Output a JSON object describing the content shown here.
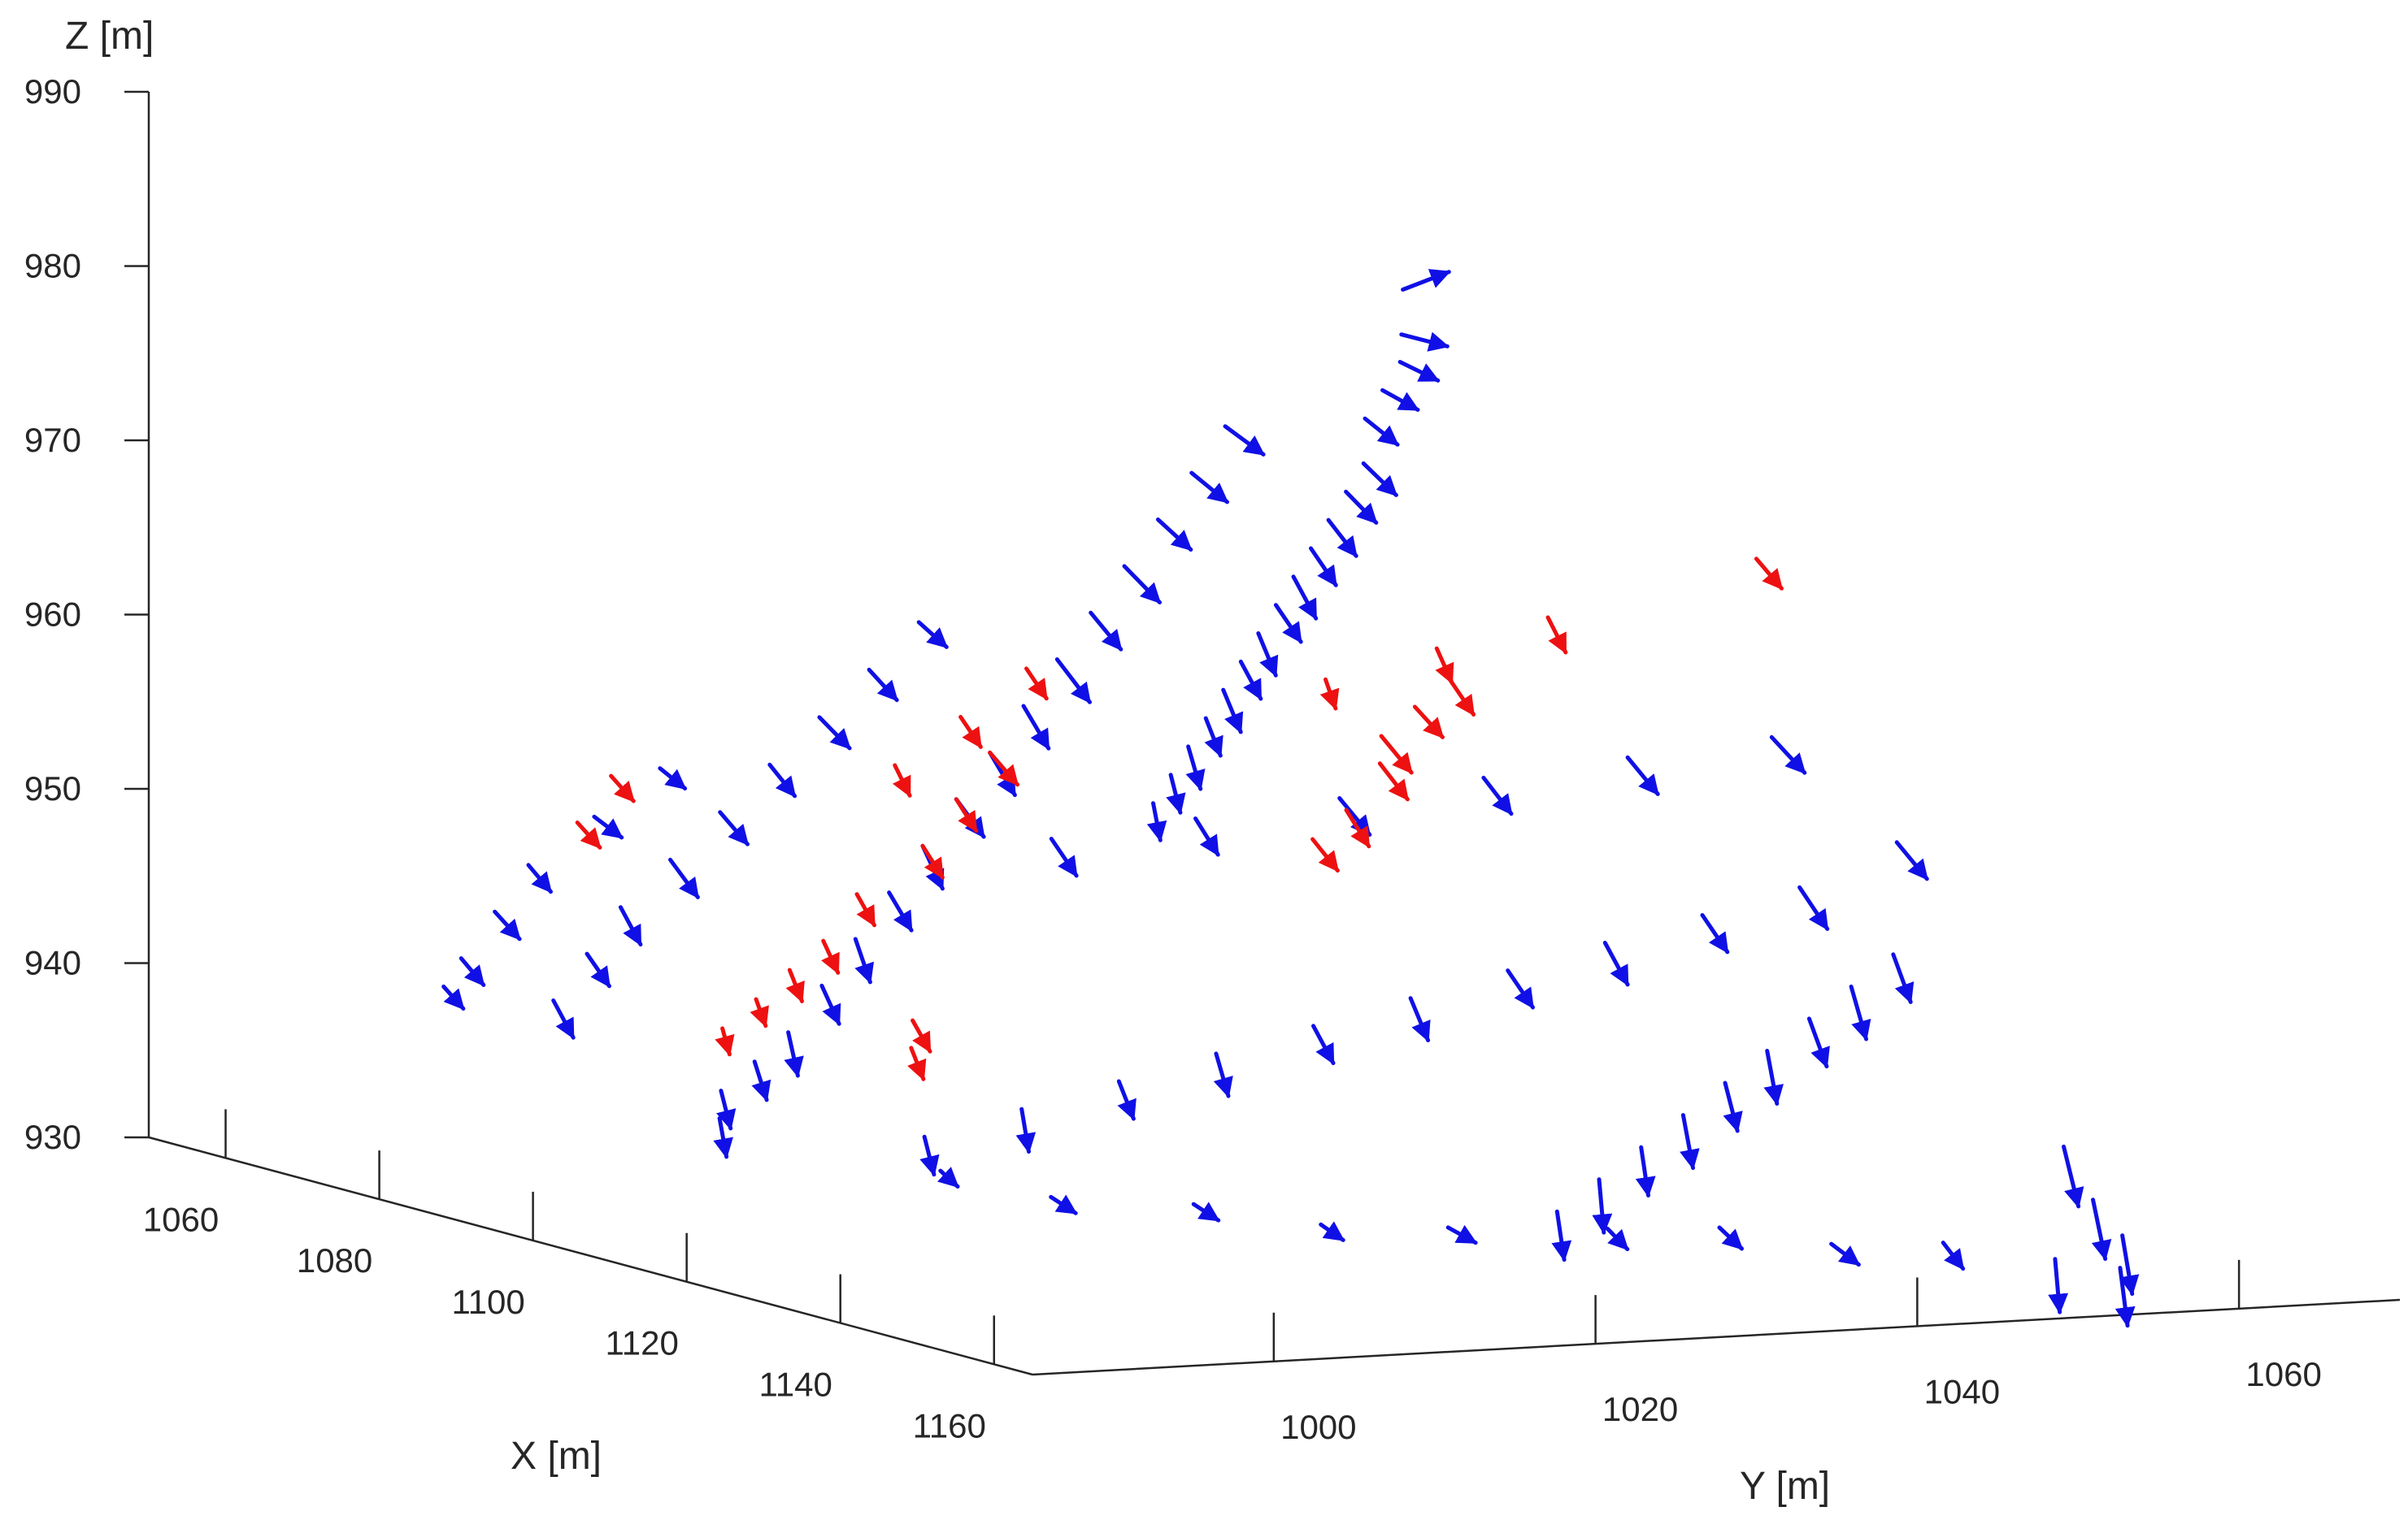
{
  "chart_data": {
    "type": "quiver3d",
    "title": "",
    "xlabel": "X [m]",
    "ylabel": "Y [m]",
    "zlabel": "Z [m]",
    "xlim": [
      1050,
      1165
    ],
    "ylim": [
      985,
      1070
    ],
    "zlim": [
      930,
      990
    ],
    "xticks": [
      1060,
      1080,
      1100,
      1120,
      1140,
      1160
    ],
    "yticks": [
      1000,
      1020,
      1040,
      1060
    ],
    "zticks": [
      930,
      940,
      950,
      960,
      970,
      980,
      990
    ],
    "grid": false,
    "legend": "none",
    "colors": {
      "normal": "#1010e6",
      "highlight": "#ee1111",
      "axis": "#262626"
    },
    "series": [
      {
        "color": "#1010e6",
        "vectors": [
          [
            1052,
            1062,
            975,
            0.2,
            0.8,
            0.3
          ],
          [
            1056,
            1060,
            973,
            0.4,
            0.7,
            -0.2
          ],
          [
            1060,
            1058,
            972,
            0.5,
            0.5,
            -0.3
          ],
          [
            1064,
            1055,
            971,
            0.6,
            0.4,
            -0.3
          ],
          [
            1068,
            1052,
            970,
            0.7,
            0.3,
            -0.4
          ],
          [
            1072,
            1050,
            968,
            0.7,
            0.3,
            -0.5
          ],
          [
            1076,
            1047,
            967,
            0.6,
            0.3,
            -0.5
          ],
          [
            1080,
            1044,
            966,
            0.5,
            0.3,
            -0.6
          ],
          [
            1084,
            1041,
            965,
            0.6,
            0.2,
            -0.6
          ],
          [
            1088,
            1038,
            964,
            0.5,
            0.2,
            -0.7
          ],
          [
            1092,
            1035,
            963,
            0.6,
            0.2,
            -0.6
          ],
          [
            1096,
            1032,
            962,
            0.5,
            0.1,
            -0.7
          ],
          [
            1100,
            1029,
            961,
            0.6,
            0.1,
            -0.6
          ],
          [
            1104,
            1026,
            960,
            0.5,
            0.1,
            -0.7
          ],
          [
            1108,
            1023,
            959,
            0.6,
            0.0,
            -0.6
          ],
          [
            1112,
            1020,
            958,
            0.5,
            0.0,
            -0.7
          ],
          [
            1116,
            1017,
            957,
            0.6,
            -0.1,
            -0.6
          ],
          [
            1120,
            1014,
            956,
            0.5,
            -0.1,
            -0.6
          ],
          [
            1054,
            1050,
            968,
            0.3,
            0.6,
            -0.5
          ],
          [
            1058,
            1046,
            966,
            0.4,
            0.5,
            -0.5
          ],
          [
            1062,
            1042,
            964,
            0.5,
            0.4,
            -0.5
          ],
          [
            1066,
            1038,
            962,
            0.6,
            0.4,
            -0.6
          ],
          [
            1070,
            1034,
            960,
            0.6,
            0.3,
            -0.6
          ],
          [
            1074,
            1030,
            958,
            0.7,
            0.3,
            -0.7
          ],
          [
            1078,
            1026,
            956,
            0.6,
            0.2,
            -0.7
          ],
          [
            1082,
            1022,
            954,
            0.6,
            0.2,
            -0.7
          ],
          [
            1086,
            1018,
            952,
            0.7,
            0.2,
            -0.6
          ],
          [
            1090,
            1014,
            950,
            0.6,
            0.1,
            -0.7
          ],
          [
            1094,
            1010,
            948,
            0.7,
            0.1,
            -0.6
          ],
          [
            1098,
            1006,
            946,
            0.6,
            0.0,
            -0.7
          ],
          [
            1102,
            1002,
            944,
            0.7,
            0.0,
            -0.6
          ],
          [
            1106,
            998,
            942,
            0.6,
            -0.1,
            -0.7
          ],
          [
            1110,
            994,
            941,
            0.7,
            -0.1,
            -0.6
          ],
          [
            1114,
            990,
            940,
            0.6,
            -0.1,
            -0.6
          ],
          [
            1118,
            988,
            939,
            0.7,
            -0.2,
            -0.6
          ],
          [
            1056,
            1030,
            958,
            0.5,
            0.3,
            -0.4
          ],
          [
            1060,
            1025,
            956,
            0.5,
            0.3,
            -0.5
          ],
          [
            1064,
            1020,
            954,
            0.6,
            0.3,
            -0.5
          ],
          [
            1068,
            1015,
            952,
            0.6,
            0.2,
            -0.5
          ],
          [
            1072,
            1010,
            950,
            0.7,
            0.2,
            -0.5
          ],
          [
            1076,
            1005,
            948,
            0.7,
            0.2,
            -0.6
          ],
          [
            1080,
            1000,
            946,
            0.6,
            0.1,
            -0.6
          ],
          [
            1084,
            996,
            944,
            0.7,
            0.1,
            -0.5
          ],
          [
            1088,
            992,
            942,
            0.6,
            0.1,
            -0.6
          ],
          [
            1060,
            1012,
            951,
            0.6,
            0.2,
            -0.3
          ],
          [
            1064,
            1006,
            949,
            0.7,
            0.2,
            -0.3
          ],
          [
            1068,
            1000,
            947,
            0.7,
            0.1,
            -0.4
          ],
          [
            1072,
            996,
            945,
            0.8,
            0.1,
            -0.4
          ],
          [
            1076,
            992,
            943,
            0.7,
            0.1,
            -0.4
          ],
          [
            1080,
            989,
            942,
            0.8,
            0.0,
            -0.3
          ],
          [
            1120,
            1060,
            945,
            0.5,
            0.1,
            -0.8
          ],
          [
            1125,
            1055,
            944,
            0.4,
            0.1,
            -0.9
          ],
          [
            1130,
            1050,
            943,
            0.5,
            0.1,
            -0.8
          ],
          [
            1135,
            1045,
            942,
            0.4,
            0.0,
            -0.9
          ],
          [
            1140,
            1040,
            941,
            0.5,
            0.0,
            -0.8
          ],
          [
            1145,
            1035,
            940,
            0.4,
            0.0,
            -0.9
          ],
          [
            1150,
            1030,
            939,
            0.5,
            -0.1,
            -0.8
          ],
          [
            1155,
            1025,
            938,
            0.4,
            -0.1,
            -0.9
          ],
          [
            1160,
            1020,
            937,
            0.5,
            -0.1,
            -0.8
          ],
          [
            1110,
            1065,
            950,
            0.6,
            0.3,
            -0.6
          ],
          [
            1112,
            1058,
            948,
            0.5,
            0.3,
            -0.7
          ],
          [
            1114,
            1051,
            947,
            0.6,
            0.2,
            -0.6
          ],
          [
            1116,
            1044,
            946,
            0.5,
            0.2,
            -0.7
          ],
          [
            1118,
            1037,
            945,
            0.6,
            0.2,
            -0.6
          ],
          [
            1120,
            1030,
            944,
            0.5,
            0.1,
            -0.7
          ],
          [
            1122,
            1023,
            943,
            0.6,
            0.1,
            -0.6
          ],
          [
            1124,
            1016,
            942,
            0.5,
            0.0,
            -0.7
          ],
          [
            1126,
            1009,
            941,
            0.6,
            0.0,
            -0.6
          ],
          [
            1128,
            1002,
            940,
            0.5,
            -0.1,
            -0.7
          ],
          [
            1130,
            995,
            939,
            0.6,
            -0.1,
            -0.6
          ],
          [
            1100,
            1062,
            955,
            0.5,
            0.4,
            -0.6
          ],
          [
            1098,
            1054,
            954,
            0.6,
            0.3,
            -0.6
          ],
          [
            1096,
            1046,
            953,
            0.5,
            0.3,
            -0.6
          ],
          [
            1094,
            1038,
            952,
            0.6,
            0.3,
            -0.6
          ],
          [
            1092,
            1030,
            951,
            0.5,
            0.2,
            -0.6
          ],
          [
            1090,
            1022,
            950,
            0.6,
            0.2,
            -0.6
          ],
          [
            1138,
            1062,
            936,
            0.6,
            0.0,
            -1.0
          ],
          [
            1146,
            1060,
            934,
            0.5,
            0.0,
            -1.0
          ],
          [
            1154,
            1058,
            933,
            0.4,
            0.0,
            -1.0
          ],
          [
            1160,
            1055,
            932,
            0.3,
            0.0,
            -1.0
          ],
          [
            1162,
            1050,
            933,
            0.4,
            -0.1,
            -0.9
          ],
          [
            1160,
            1044,
            934,
            0.6,
            0.1,
            -0.4
          ],
          [
            1158,
            1038,
            934,
            0.7,
            0.2,
            -0.3
          ],
          [
            1156,
            1032,
            935,
            0.7,
            0.1,
            -0.3
          ],
          [
            1154,
            1026,
            935,
            0.6,
            0.1,
            -0.3
          ],
          [
            1150,
            1018,
            935,
            0.7,
            0.2,
            -0.2
          ],
          [
            1146,
            1012,
            935,
            0.7,
            0.1,
            -0.2
          ],
          [
            1142,
            1006,
            936,
            0.8,
            0.1,
            -0.2
          ],
          [
            1136,
            1000,
            936,
            0.8,
            0.1,
            -0.2
          ],
          [
            1130,
            996,
            937,
            0.7,
            0.0,
            -0.2
          ]
        ]
      },
      {
        "color": "#ee1111",
        "vectors": [
          [
            1112,
            1032,
            958,
            0.6,
            0.3,
            -0.6
          ],
          [
            1116,
            1030,
            957,
            0.5,
            0.3,
            -0.6
          ],
          [
            1108,
            1036,
            959,
            0.5,
            0.3,
            -0.5
          ],
          [
            1104,
            1040,
            960,
            0.6,
            0.2,
            -0.6
          ],
          [
            1120,
            1026,
            955,
            0.5,
            0.2,
            -0.6
          ],
          [
            1124,
            1022,
            954,
            0.6,
            0.2,
            -0.5
          ],
          [
            1082,
            1022,
            954,
            0.7,
            0.2,
            -0.5
          ],
          [
            1086,
            1018,
            952,
            0.6,
            0.1,
            -0.5
          ],
          [
            1090,
            1014,
            950,
            0.6,
            0.1,
            -0.5
          ],
          [
            1094,
            1008,
            948,
            0.5,
            0.1,
            -0.5
          ],
          [
            1098,
            1004,
            946,
            0.6,
            0.0,
            -0.5
          ],
          [
            1102,
            1000,
            945,
            0.5,
            0.0,
            -0.5
          ],
          [
            1106,
            996,
            944,
            0.6,
            -0.1,
            -0.4
          ],
          [
            1110,
            992,
            943,
            0.5,
            -0.1,
            -0.4
          ],
          [
            1070,
            1030,
            957,
            0.4,
            0.2,
            -0.5
          ],
          [
            1074,
            1024,
            955,
            0.4,
            0.2,
            -0.5
          ],
          [
            1078,
            1018,
            953,
            0.4,
            0.1,
            -0.5
          ],
          [
            1062,
            1008,
            951,
            0.5,
            0.2,
            -0.4
          ],
          [
            1066,
            1004,
            949,
            0.5,
            0.2,
            -0.4
          ],
          [
            1096,
            1050,
            962,
            0.3,
            0.2,
            -0.6
          ],
          [
            1098,
            1062,
            965,
            0.4,
            0.3,
            -0.5
          ],
          [
            1092,
            1045,
            960,
            0.2,
            0.2,
            -0.6
          ],
          [
            1088,
            1040,
            958,
            0.2,
            0.1,
            -0.5
          ],
          [
            1118,
            1000,
            944,
            0.5,
            0.1,
            -0.5
          ],
          [
            1122,
            998,
            943,
            0.5,
            0.0,
            -0.5
          ]
        ]
      }
    ]
  }
}
